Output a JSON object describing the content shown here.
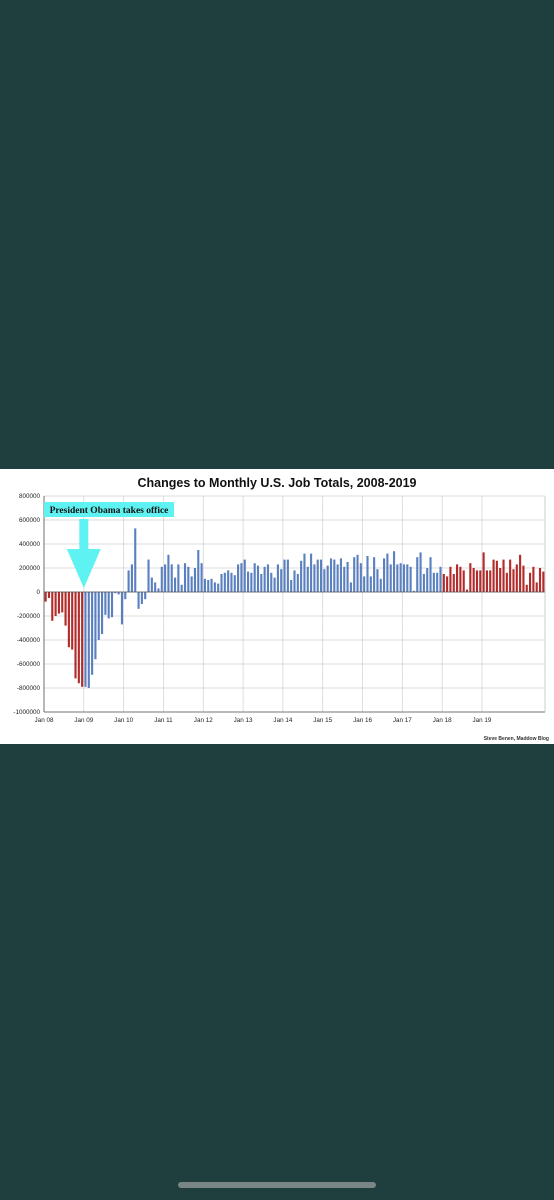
{
  "chart_data": {
    "type": "bar",
    "title": "Changes to Monthly U.S. Job Totals, 2008-2019",
    "credit": "Steve Benen, Maddow Blog",
    "annotation": "President Obama takes office",
    "annotation_month": "Jan 09",
    "xlabel": "",
    "ylabel": "",
    "ylim": [
      -1000000,
      800000
    ],
    "y_ticks": [
      800000,
      600000,
      400000,
      200000,
      0,
      -200000,
      -400000,
      -600000,
      -800000,
      -1000000
    ],
    "x_ticks": [
      "Jan 08",
      "Jan 09",
      "Jan 10",
      "Jan 11",
      "Jan 12",
      "Jan 13",
      "Jan 14",
      "Jan 15",
      "Jan 16",
      "Jan 17",
      "Jan 18",
      "Jan 19"
    ],
    "grid": true,
    "legend": "none",
    "colors": {
      "red": "#b22a2a",
      "blue": "#5b80c0",
      "annotation": "#5ff2f2"
    },
    "start_month": "Jan 08",
    "series": [
      {
        "color_key": "red",
        "values": [
          -80000,
          -50000,
          -240000,
          -200000,
          -180000,
          -170000,
          -280000,
          -460000,
          -480000,
          -720000,
          -760000,
          -790000
        ]
      },
      {
        "color_key": "blue",
        "values": [
          -790000,
          -800000,
          -690000,
          -560000,
          -400000,
          -350000,
          -190000,
          -220000,
          -210000,
          -10000,
          -20000,
          -270000,
          -60000,
          180000,
          230000,
          530000,
          -140000,
          -100000,
          -60000,
          270000,
          120000,
          80000,
          30000,
          210000,
          230000,
          310000,
          230000,
          120000,
          230000,
          60000,
          240000,
          210000,
          130000,
          200000,
          350000,
          240000,
          110000,
          100000,
          110000,
          80000,
          70000,
          150000,
          160000,
          180000,
          160000,
          140000,
          230000,
          240000,
          270000,
          170000,
          160000,
          240000,
          220000,
          150000,
          210000,
          230000,
          160000,
          120000,
          230000,
          190000,
          270000,
          270000,
          100000,
          180000,
          150000,
          260000,
          320000,
          210000,
          320000,
          230000,
          270000,
          270000,
          190000,
          220000,
          280000,
          270000,
          230000,
          280000,
          210000,
          250000,
          80000,
          290000,
          310000,
          240000,
          130000,
          300000,
          130000,
          290000,
          190000,
          110000,
          280000,
          320000,
          230000,
          340000,
          230000,
          240000,
          230000,
          230000,
          210000,
          10000,
          290000,
          330000,
          150000,
          200000,
          290000,
          160000,
          160000,
          210000
        ]
      },
      {
        "color_key": "red",
        "values": [
          150000,
          130000,
          210000,
          150000,
          230000,
          210000,
          180000,
          20000,
          240000,
          200000,
          180000,
          180000,
          330000,
          180000,
          180000,
          270000,
          260000,
          200000,
          270000,
          160000,
          270000,
          190000,
          230000,
          310000,
          220000,
          60000,
          160000,
          210000,
          80000,
          200000,
          170000
        ]
      }
    ]
  }
}
